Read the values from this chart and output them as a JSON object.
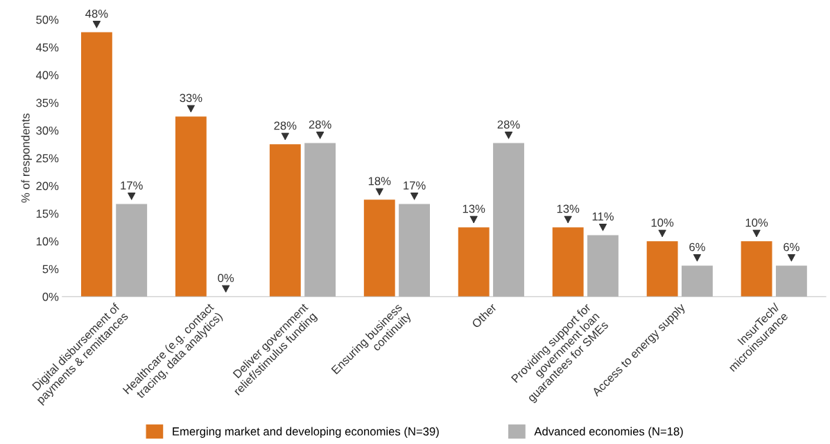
{
  "chart_data": {
    "type": "bar",
    "categories": [
      "Digital disbursement of\npayments & remittances",
      "Healthcare (e.g. contact\ntracing, data analytics)",
      "Deliver government\nrelief/stimulus funding",
      "Ensuring business\ncontinuity",
      "Other",
      "Providing support for\ngovernment loan\nguarantees for SMEs",
      "Access to energy supply",
      "InsurTech/\nmicroinsurance"
    ],
    "series": [
      {
        "name": "Emerging market and developing economies (N=39)",
        "color": "#dd741e",
        "values": [
          47.7,
          32.5,
          27.5,
          17.5,
          12.5,
          12.5,
          10.0,
          10.0
        ],
        "value_labels": [
          "48%",
          "33%",
          "28%",
          "18%",
          "13%",
          "13%",
          "10%",
          "10%"
        ]
      },
      {
        "name": "Advanced economies (N=18)",
        "color": "#b1b1b1",
        "values": [
          16.7,
          0,
          27.7,
          16.7,
          27.7,
          11.1,
          5.6,
          5.6
        ],
        "value_labels": [
          "17%",
          "0%",
          "28%",
          "17%",
          "28%",
          "11%",
          "6%",
          "6%"
        ]
      }
    ],
    "ylabel": "% of respondents",
    "ylim": [
      0,
      50
    ],
    "yticks": [
      {
        "value": 0,
        "label": "0%"
      },
      {
        "value": 5,
        "label": "5%"
      },
      {
        "value": 10,
        "label": "10%"
      },
      {
        "value": 15,
        "label": "15%"
      },
      {
        "value": 20,
        "label": "20%"
      },
      {
        "value": 25,
        "label": "25%"
      },
      {
        "value": 30,
        "label": "30%"
      },
      {
        "value": 35,
        "label": "35%"
      },
      {
        "value": 40,
        "label": "40%"
      },
      {
        "value": 45,
        "label": "45%"
      },
      {
        "value": 50,
        "label": "50%"
      }
    ],
    "grid": false,
    "legend": "bottom"
  }
}
